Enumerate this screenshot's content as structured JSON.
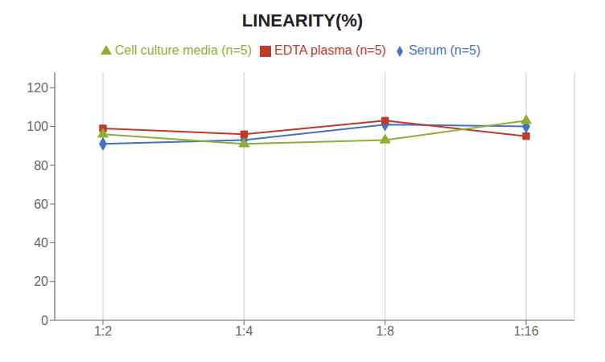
{
  "chart_data": {
    "type": "line",
    "title": "LINEARITY(%)",
    "categories": [
      "1:2",
      "1:4",
      "1:8",
      "1:16"
    ],
    "series": [
      {
        "name": "Serum (n=5)",
        "color": "#4472C4",
        "marker": "diamond",
        "values": [
          91,
          93,
          101,
          100
        ]
      },
      {
        "name": "EDTA plasma (n=5)",
        "color": "#C0392B",
        "marker": "square",
        "values": [
          99,
          96,
          103,
          95
        ]
      },
      {
        "name": "Cell culture media (n=5)",
        "color": "#8DB030",
        "marker": "triangle",
        "values": [
          96,
          91,
          93,
          103
        ]
      }
    ],
    "ylim": [
      0,
      128
    ],
    "yticks": [
      0,
      20,
      40,
      60,
      80,
      100,
      120
    ],
    "grid": "x",
    "legend": "top"
  }
}
